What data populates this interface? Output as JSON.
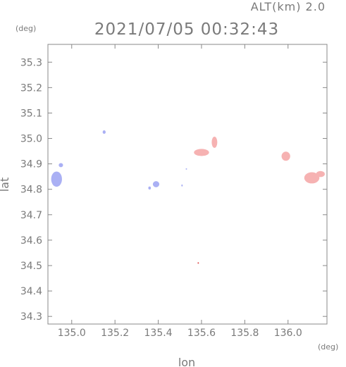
{
  "chart_data": {
    "type": "scatter",
    "title": "2021/07/05 00:32:43",
    "altitude_label": "ALT(km) 2.0",
    "xlabel": "lon",
    "ylabel": "lat",
    "x_unit": "(deg)",
    "y_unit": "(deg)",
    "xlim": [
      134.89,
      136.18
    ],
    "ylim": [
      34.27,
      35.37
    ],
    "xticks": [
      135.0,
      135.2,
      135.4,
      135.6,
      135.8,
      136.0
    ],
    "xtick_labels": [
      "135.0",
      "135.2",
      "135.4",
      "135.6",
      "135.8",
      "136.0"
    ],
    "yticks": [
      34.3,
      34.4,
      34.5,
      34.6,
      34.7,
      34.8,
      34.9,
      35.0,
      35.1,
      35.2,
      35.3
    ],
    "ytick_labels": [
      "34.3",
      "34.4",
      "34.5",
      "34.6",
      "34.7",
      "34.8",
      "34.9",
      "35.0",
      "35.1",
      "35.2",
      "35.3"
    ],
    "grid": false,
    "colors": {
      "approaching": "#aab0f4",
      "receding": "#f6b2b2",
      "dot": "#e05050"
    },
    "clusters": [
      {
        "color": "approaching",
        "lon": 134.93,
        "lat": 34.84,
        "rlon": 0.025,
        "rlat": 0.03
      },
      {
        "color": "approaching",
        "lon": 134.95,
        "lat": 34.895,
        "rlon": 0.01,
        "rlat": 0.008
      },
      {
        "color": "approaching",
        "lon": 135.15,
        "lat": 35.025,
        "rlon": 0.007,
        "rlat": 0.007
      },
      {
        "color": "approaching",
        "lon": 135.39,
        "lat": 34.82,
        "rlon": 0.015,
        "rlat": 0.012
      },
      {
        "color": "approaching",
        "lon": 135.36,
        "lat": 34.805,
        "rlon": 0.006,
        "rlat": 0.006
      },
      {
        "color": "approaching",
        "lon": 135.51,
        "lat": 34.815,
        "rlon": 0.003,
        "rlat": 0.004
      },
      {
        "color": "receding",
        "lon": 135.6,
        "lat": 34.945,
        "rlon": 0.035,
        "rlat": 0.014
      },
      {
        "color": "receding",
        "lon": 135.66,
        "lat": 34.985,
        "rlon": 0.013,
        "rlat": 0.022
      },
      {
        "color": "receding",
        "lon": 135.99,
        "lat": 34.93,
        "rlon": 0.02,
        "rlat": 0.018
      },
      {
        "color": "receding",
        "lon": 136.11,
        "lat": 34.845,
        "rlon": 0.035,
        "rlat": 0.022
      },
      {
        "color": "receding",
        "lon": 136.15,
        "lat": 34.86,
        "rlon": 0.02,
        "rlat": 0.012
      },
      {
        "color": "dot",
        "lon": 135.585,
        "lat": 34.51,
        "rlon": 0.003,
        "rlat": 0.003
      },
      {
        "color": "approaching",
        "lon": 135.53,
        "lat": 34.88,
        "rlon": 0.002,
        "rlat": 0.002
      }
    ]
  }
}
